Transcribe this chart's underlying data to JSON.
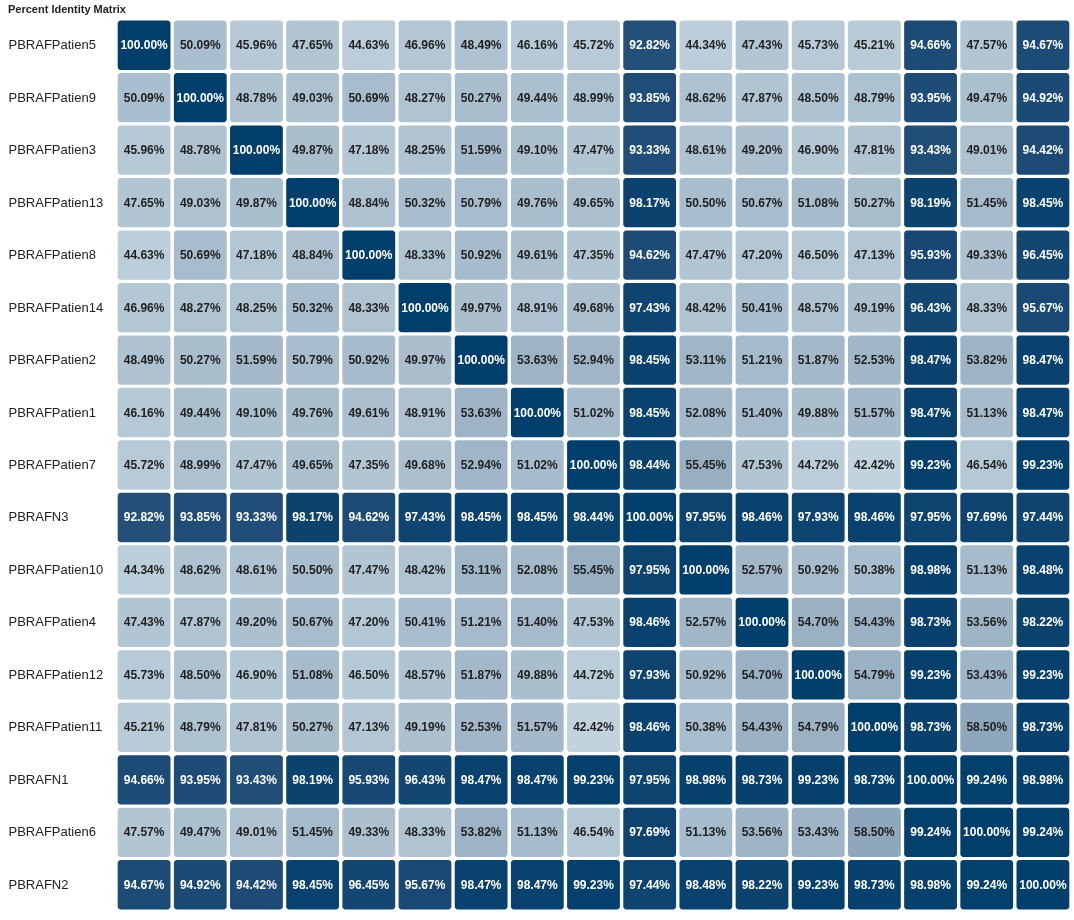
{
  "chart_data": {
    "type": "heatmap",
    "title": "Percent Identity Matrix",
    "categories": [
      null,
      null,
      null,
      null,
      null,
      null,
      null,
      null,
      null,
      null,
      null,
      null,
      null,
      null,
      null,
      null,
      null
    ],
    "y_categories": [
      "PBRAFPatien5",
      "PBRAFPatien9",
      "PBRAFPatien3",
      "PBRAFPatien13",
      "PBRAFPatien8",
      "PBRAFPatien14",
      "PBRAFPatien2",
      "PBRAFPatien1",
      "PBRAFPatien7",
      "PBRAFN3",
      "PBRAFPatien10",
      "PBRAFPatien4",
      "PBRAFPatien12",
      "PBRAFPatien11",
      "PBRAFN1",
      "PBRAFPatien6",
      "PBRAFN2"
    ],
    "cells": [
      [
        100.0,
        50.09,
        45.96,
        47.65,
        44.63,
        46.96,
        48.49,
        46.16,
        45.72,
        92.82,
        44.34,
        47.43,
        45.73,
        45.21,
        94.66,
        47.57,
        94.67
      ],
      [
        50.09,
        100.0,
        48.78,
        49.03,
        50.69,
        48.27,
        50.27,
        49.44,
        48.99,
        93.85,
        48.62,
        47.87,
        48.5,
        48.79,
        93.95,
        49.47,
        94.92
      ],
      [
        45.96,
        48.78,
        100.0,
        49.87,
        47.18,
        48.25,
        51.59,
        49.1,
        47.47,
        93.33,
        48.61,
        49.2,
        46.9,
        47.81,
        93.43,
        49.01,
        94.42
      ],
      [
        47.65,
        49.03,
        49.87,
        100.0,
        48.84,
        50.32,
        50.79,
        49.76,
        49.65,
        98.17,
        50.5,
        50.67,
        51.08,
        50.27,
        98.19,
        51.45,
        98.45
      ],
      [
        44.63,
        50.69,
        47.18,
        48.84,
        100.0,
        48.33,
        50.92,
        49.61,
        47.35,
        94.62,
        47.47,
        47.2,
        46.5,
        47.13,
        95.93,
        49.33,
        96.45
      ],
      [
        46.96,
        48.27,
        48.25,
        50.32,
        48.33,
        100.0,
        49.97,
        48.91,
        49.68,
        97.43,
        48.42,
        50.41,
        48.57,
        49.19,
        96.43,
        48.33,
        95.67
      ],
      [
        48.49,
        50.27,
        51.59,
        50.79,
        50.92,
        49.97,
        100.0,
        53.63,
        52.94,
        98.45,
        53.11,
        51.21,
        51.87,
        52.53,
        98.47,
        53.82,
        98.47
      ],
      [
        46.16,
        49.44,
        49.1,
        49.76,
        49.61,
        48.91,
        53.63,
        100.0,
        51.02,
        98.45,
        52.08,
        51.4,
        49.88,
        51.57,
        98.47,
        51.13,
        98.47
      ],
      [
        45.72,
        48.99,
        47.47,
        49.65,
        47.35,
        49.68,
        52.94,
        51.02,
        100.0,
        98.44,
        55.45,
        47.53,
        44.72,
        42.42,
        99.23,
        46.54,
        99.23
      ],
      [
        92.82,
        93.85,
        93.33,
        98.17,
        94.62,
        97.43,
        98.45,
        98.45,
        98.44,
        100.0,
        97.95,
        98.46,
        97.93,
        98.46,
        97.95,
        97.69,
        97.44
      ],
      [
        44.34,
        48.62,
        48.61,
        50.5,
        47.47,
        48.42,
        53.11,
        52.08,
        55.45,
        97.95,
        100.0,
        52.57,
        50.92,
        50.38,
        98.98,
        51.13,
        98.48
      ],
      [
        47.43,
        47.87,
        49.2,
        50.67,
        47.2,
        50.41,
        51.21,
        51.4,
        47.53,
        98.46,
        52.57,
        100.0,
        54.7,
        54.43,
        98.73,
        53.56,
        98.22
      ],
      [
        45.73,
        48.5,
        46.9,
        51.08,
        46.5,
        48.57,
        51.87,
        49.88,
        44.72,
        97.93,
        50.92,
        54.7,
        100.0,
        54.79,
        99.23,
        53.43,
        99.23
      ],
      [
        45.21,
        48.79,
        47.81,
        50.27,
        47.13,
        49.19,
        52.53,
        51.57,
        42.42,
        98.46,
        50.38,
        54.43,
        54.79,
        100.0,
        98.73,
        58.5,
        98.73
      ],
      [
        94.66,
        93.95,
        93.43,
        98.19,
        95.93,
        96.43,
        98.47,
        98.47,
        99.23,
        97.95,
        98.98,
        98.73,
        99.23,
        98.73,
        100.0,
        99.24,
        98.98
      ],
      [
        47.57,
        49.47,
        49.01,
        51.45,
        49.33,
        48.33,
        53.82,
        51.13,
        46.54,
        97.69,
        51.13,
        53.56,
        53.43,
        58.5,
        99.24,
        100.0,
        99.24
      ],
      [
        94.67,
        94.92,
        94.42,
        98.45,
        96.45,
        95.67,
        98.47,
        98.47,
        99.23,
        97.44,
        98.48,
        98.22,
        99.23,
        98.73,
        98.98,
        99.24,
        100.0
      ]
    ],
    "cell_labels": [
      [
        "100.00%",
        "50.09%",
        "45.96%",
        "47.65%",
        "44.63%",
        "46.96%",
        "48.49%",
        "46.16%",
        "45.72%",
        "92.82%",
        "44.34%",
        "47.43%",
        "45.73%",
        "45.21%",
        "94.66%",
        "47.57%",
        "94.67%"
      ],
      [
        "50.09%",
        "100.00%",
        "48.78%",
        "49.03%",
        "50.69%",
        "48.27%",
        "50.27%",
        "49.44%",
        "48.99%",
        "93.85%",
        "48.62%",
        "47.87%",
        "48.50%",
        "48.79%",
        "93.95%",
        "49.47%",
        "94.92%"
      ],
      [
        "45.96%",
        "48.78%",
        "100.00%",
        "49.87%",
        "47.18%",
        "48.25%",
        "51.59%",
        "49.10%",
        "47.47%",
        "93.33%",
        "48.61%",
        "49.20%",
        "46.90%",
        "47.81%",
        "93.43%",
        "49.01%",
        "94.42%"
      ],
      [
        "47.65%",
        "49.03%",
        "49.87%",
        "100.00%",
        "48.84%",
        "50.32%",
        "50.79%",
        "49.76%",
        "49.65%",
        "98.17%",
        "50.50%",
        "50.67%",
        "51.08%",
        "50.27%",
        "98.19%",
        "51.45%",
        "98.45%"
      ],
      [
        "44.63%",
        "50.69%",
        "47.18%",
        "48.84%",
        "100.00%",
        "48.33%",
        "50.92%",
        "49.61%",
        "47.35%",
        "94.62%",
        "47.47%",
        "47.20%",
        "46.50%",
        "47.13%",
        "95.93%",
        "49.33%",
        "96.45%"
      ],
      [
        "46.96%",
        "48.27%",
        "48.25%",
        "50.32%",
        "48.33%",
        "100.00%",
        "49.97%",
        "48.91%",
        "49.68%",
        "97.43%",
        "48.42%",
        "50.41%",
        "48.57%",
        "49.19%",
        "96.43%",
        "48.33%",
        "95.67%"
      ],
      [
        "48.49%",
        "50.27%",
        "51.59%",
        "50.79%",
        "50.92%",
        "49.97%",
        "100.00%",
        "53.63%",
        "52.94%",
        "98.45%",
        "53.11%",
        "51.21%",
        "51.87%",
        "52.53%",
        "98.47%",
        "53.82%",
        "98.47%"
      ],
      [
        "46.16%",
        "49.44%",
        "49.10%",
        "49.76%",
        "49.61%",
        "48.91%",
        "53.63%",
        "100.00%",
        "51.02%",
        "98.45%",
        "52.08%",
        "51.40%",
        "49.88%",
        "51.57%",
        "98.47%",
        "51.13%",
        "98.47%"
      ],
      [
        "45.72%",
        "48.99%",
        "47.47%",
        "49.65%",
        "47.35%",
        "49.68%",
        "52.94%",
        "51.02%",
        "100.00%",
        "98.44%",
        "55.45%",
        "47.53%",
        "44.72%",
        "42.42%",
        "99.23%",
        "46.54%",
        "99.23%"
      ],
      [
        "92.82%",
        "93.85%",
        "93.33%",
        "98.17%",
        "94.62%",
        "97.43%",
        "98.45%",
        "98.45%",
        "98.44%",
        "100.00%",
        "97.95%",
        "98.46%",
        "97.93%",
        "98.46%",
        "97.95%",
        "97.69%",
        "97.44%"
      ],
      [
        "44.34%",
        "48.62%",
        "48.61%",
        "50.50%",
        "47.47%",
        "48.42%",
        "53.11%",
        "52.08%",
        "55.45%",
        "97.95%",
        "100.00%",
        "52.57%",
        "50.92%",
        "50.38%",
        "98.98%",
        "51.13%",
        "98.48%"
      ],
      [
        "47.43%",
        "47.87%",
        "49.20%",
        "50.67%",
        "47.20%",
        "50.41%",
        "51.21%",
        "51.40%",
        "47.53%",
        "98.46%",
        "52.57%",
        "100.00%",
        "54.70%",
        "54.43%",
        "98.73%",
        "53.56%",
        "98.22%"
      ],
      [
        "45.73%",
        "48.50%",
        "46.90%",
        "51.08%",
        "46.50%",
        "48.57%",
        "51.87%",
        "49.88%",
        "44.72%",
        "97.93%",
        "50.92%",
        "54.70%",
        "100.00%",
        "54.79%",
        "99.23%",
        "53.43%",
        "99.23%"
      ],
      [
        "45.21%",
        "48.79%",
        "47.81%",
        "50.27%",
        "47.13%",
        "49.19%",
        "52.53%",
        "51.57%",
        "42.42%",
        "98.46%",
        "50.38%",
        "54.43%",
        "54.79%",
        "100.00%",
        "98.73%",
        "58.50%",
        "98.73%"
      ],
      [
        "94.66%",
        "93.95%",
        "93.43%",
        "98.19%",
        "95.93%",
        "96.43%",
        "98.47%",
        "98.47%",
        "99.23%",
        "97.95%",
        "98.98%",
        "98.73%",
        "99.23%",
        "98.73%",
        "100.00%",
        "99.24%",
        "98.98%"
      ],
      [
        "47.57%",
        "49.47%",
        "49.01%",
        "51.45%",
        "49.33%",
        "48.33%",
        "53.82%",
        "51.13%",
        "46.54%",
        "97.69%",
        "51.13%",
        "53.56%",
        "53.43%",
        "58.50%",
        "99.24%",
        "100.00%",
        "99.24%"
      ],
      [
        "94.67%",
        "94.92%",
        "94.42%",
        "98.45%",
        "96.45%",
        "95.67%",
        "98.47%",
        "98.47%",
        "99.23%",
        "97.44%",
        "98.48%",
        "98.22%",
        "99.23%",
        "98.73%",
        "98.98%",
        "99.24%",
        "100.00%"
      ]
    ]
  }
}
